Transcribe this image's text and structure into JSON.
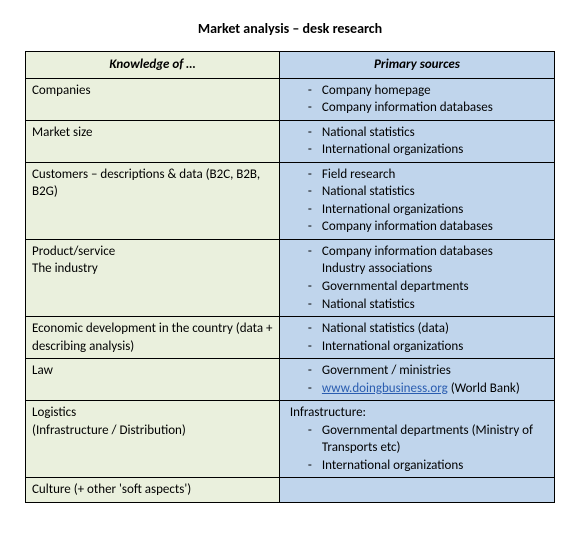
{
  "title": "Market analysis – desk research",
  "colors": {
    "knowledge_bg": "#eaf0dd",
    "sources_bg": "#c0d5ec",
    "border": "#000000",
    "link": "#2a5db0"
  },
  "headers": {
    "knowledge": "Knowledge of …",
    "sources": "Primary sources"
  },
  "rows": [
    {
      "knowledge": "Companies",
      "sources": [
        {
          "text": "Company homepage",
          "bullet": true
        },
        {
          "text": "Company information databases",
          "bullet": true
        }
      ]
    },
    {
      "knowledge": "Market size",
      "sources": [
        {
          "text": "National statistics",
          "bullet": true
        },
        {
          "text": "International organizations",
          "bullet": true
        }
      ]
    },
    {
      "knowledge": "Customers – descriptions & data (B2C, B2B, B2G)",
      "sources": [
        {
          "text": "Field research",
          "bullet": true
        },
        {
          "text": "National statistics",
          "bullet": true
        },
        {
          "text": "International organizations",
          "bullet": true
        },
        {
          "text": "Company information databases",
          "bullet": true
        }
      ]
    },
    {
      "knowledge": "Product/service\nThe industry",
      "sources": [
        {
          "text": "Company information databases",
          "bullet": true
        },
        {
          "text": "Industry associations",
          "bullet": false
        },
        {
          "text": "Governmental departments",
          "bullet": true
        },
        {
          "text": "National statistics",
          "bullet": true
        }
      ]
    },
    {
      "knowledge": "Economic development in the country (data + describing analysis)",
      "sources": [
        {
          "text": "National statistics (data)",
          "bullet": true
        },
        {
          "text": "International organizations",
          "bullet": true
        }
      ],
      "extraSpace": true
    },
    {
      "knowledge": "Law",
      "sources": [
        {
          "text": "Government / ministries",
          "bullet": true
        },
        {
          "prelink": "",
          "linkText": "www.doingbusiness.org",
          "postlink": " (World Bank)",
          "bullet": true,
          "isLink": true
        }
      ]
    },
    {
      "knowledge": "Logistics\n(Infrastructure / Distribution)",
      "prefix": "Infrastructure:",
      "sources": [
        {
          "text": "Governmental departments (Ministry of Transports etc)",
          "bullet": true
        },
        {
          "text": "International organizations",
          "bullet": true
        }
      ]
    },
    {
      "knowledge": "Culture (+ other 'soft aspects')",
      "sources": [],
      "extraSpace": true
    }
  ]
}
